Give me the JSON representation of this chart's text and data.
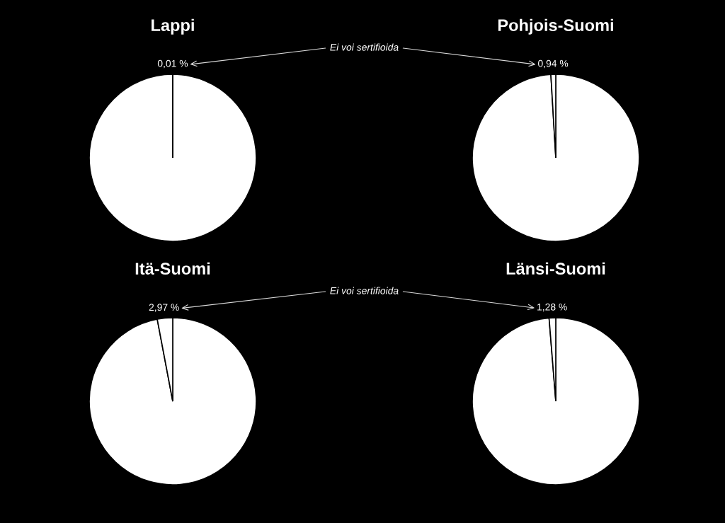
{
  "chart_data": [
    {
      "type": "pie",
      "title": "Lappi",
      "categories": [
        null,
        null
      ],
      "values": [
        99.99,
        0.01
      ],
      "colors": [
        "#ffffff",
        "#ffffff"
      ],
      "value_labels": [
        null,
        "0,01 %"
      ],
      "annotations": [
        "Ei voi sertifioida"
      ]
    },
    {
      "type": "pie",
      "title": "Pohjois-Suomi",
      "categories": [
        null,
        null
      ],
      "values": [
        99.06,
        0.94
      ],
      "colors": [
        "#ffffff",
        "#ffffff"
      ],
      "value_labels": [
        null,
        "0,94 %"
      ]
    },
    {
      "type": "pie",
      "title": "Itä-Suomi",
      "categories": [
        null,
        null
      ],
      "values": [
        97.03,
        2.97
      ],
      "colors": [
        "#ffffff",
        "#ffffff"
      ],
      "value_labels": [
        null,
        "2,97 %"
      ],
      "annotations": [
        "Ei voi sertifioida"
      ]
    },
    {
      "type": "pie",
      "title": "Länsi-Suomi",
      "categories": [
        null,
        null
      ],
      "values": [
        98.72,
        1.28
      ],
      "colors": [
        "#ffffff",
        "#ffffff"
      ],
      "value_labels": [
        null,
        "1,28 %"
      ]
    }
  ]
}
